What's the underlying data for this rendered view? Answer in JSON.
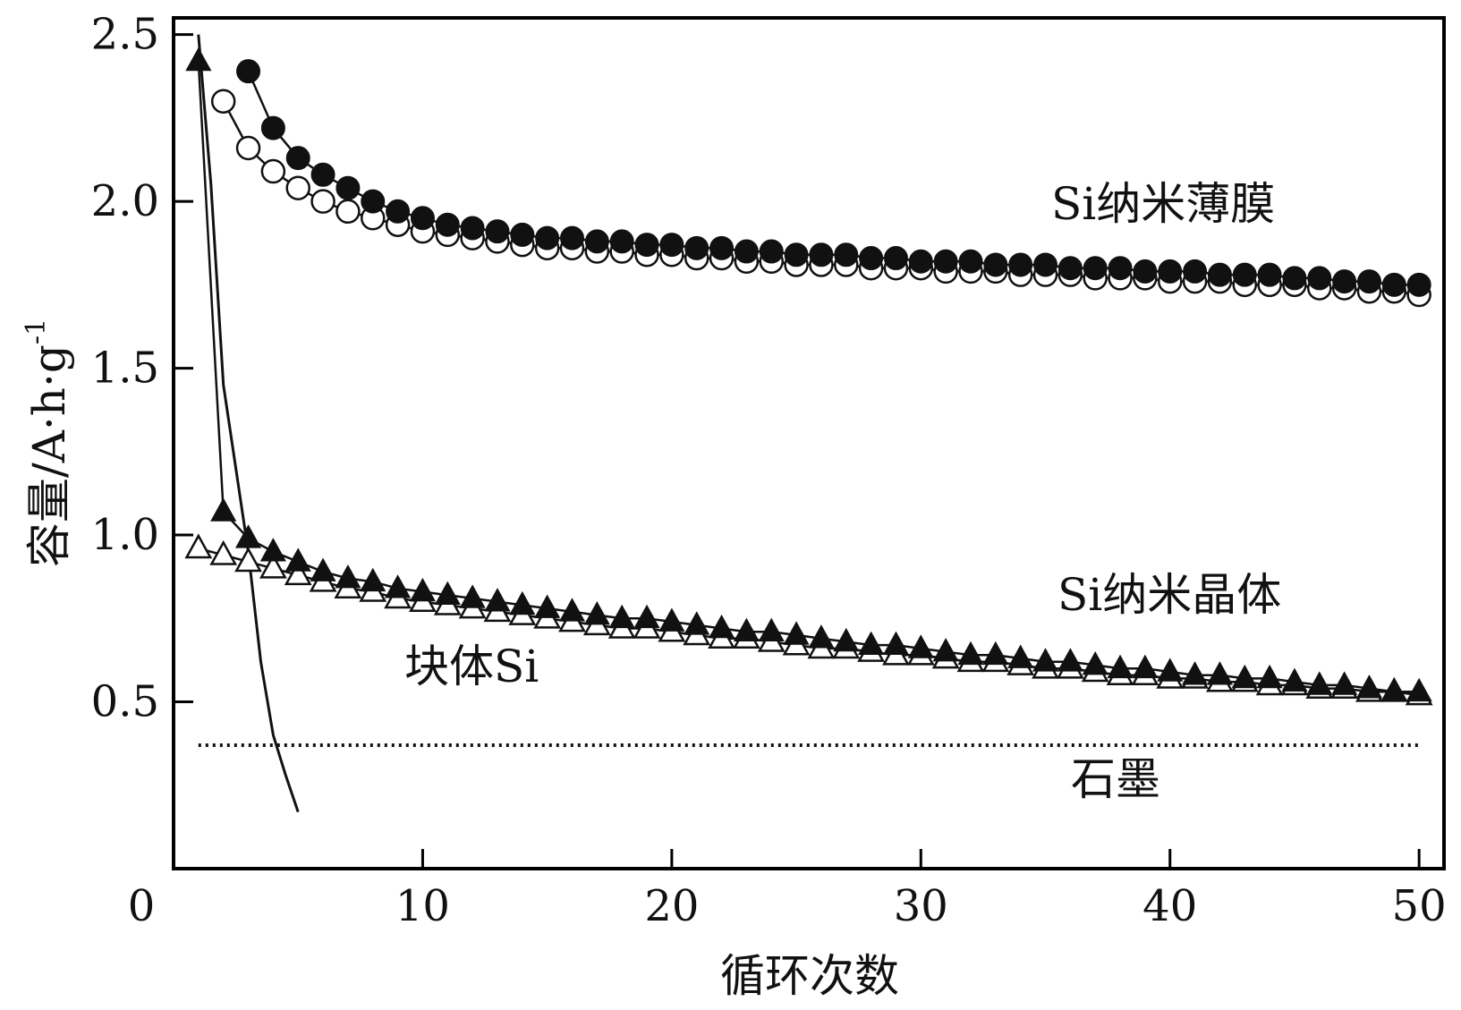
{
  "chart_data": {
    "type": "scatter",
    "xlabel": "循环次数",
    "ylabel": "容量/A·h·g",
    "ylabel_superscript": "-1",
    "xlim": [
      0,
      51
    ],
    "ylim": [
      0,
      2.55
    ],
    "x_ticks": [
      "0",
      "10",
      "20",
      "30",
      "40",
      "50"
    ],
    "y_ticks": [
      "0.5",
      "1.0",
      "1.5",
      "2.0",
      "2.5"
    ],
    "grid": false,
    "annotations": {
      "film": "Si纳米薄膜",
      "nanocrystal": "Si纳米晶体",
      "bulk": "块体Si",
      "graphite": "石墨"
    },
    "series": [
      {
        "marker": "filled-circle",
        "x": [
          3,
          4,
          5,
          6,
          7,
          8,
          9,
          10,
          11,
          12,
          13,
          14,
          15,
          16,
          17,
          18,
          19,
          20,
          21,
          22,
          23,
          24,
          25,
          26,
          27,
          28,
          29,
          30,
          31,
          32,
          33,
          34,
          35,
          36,
          37,
          38,
          39,
          40,
          41,
          42,
          43,
          44,
          45,
          46,
          47,
          48,
          49,
          50
        ],
        "y": [
          2.39,
          2.22,
          2.13,
          2.08,
          2.04,
          2.0,
          1.97,
          1.95,
          1.93,
          1.92,
          1.91,
          1.9,
          1.89,
          1.89,
          1.88,
          1.88,
          1.87,
          1.87,
          1.86,
          1.86,
          1.85,
          1.85,
          1.84,
          1.84,
          1.84,
          1.83,
          1.83,
          1.82,
          1.82,
          1.82,
          1.81,
          1.81,
          1.81,
          1.8,
          1.8,
          1.8,
          1.79,
          1.79,
          1.79,
          1.78,
          1.78,
          1.78,
          1.77,
          1.77,
          1.76,
          1.76,
          1.75,
          1.75
        ]
      },
      {
        "marker": "open-circle",
        "x": [
          2,
          3,
          4,
          5,
          6,
          7,
          8,
          9,
          10,
          11,
          12,
          13,
          14,
          15,
          16,
          17,
          18,
          19,
          20,
          21,
          22,
          23,
          24,
          25,
          26,
          27,
          28,
          29,
          30,
          31,
          32,
          33,
          34,
          35,
          36,
          37,
          38,
          39,
          40,
          41,
          42,
          43,
          44,
          45,
          46,
          47,
          48,
          49,
          50
        ],
        "y": [
          2.3,
          2.16,
          2.09,
          2.04,
          2.0,
          1.97,
          1.95,
          1.93,
          1.91,
          1.9,
          1.89,
          1.88,
          1.87,
          1.86,
          1.86,
          1.85,
          1.85,
          1.84,
          1.84,
          1.83,
          1.83,
          1.82,
          1.82,
          1.81,
          1.81,
          1.81,
          1.8,
          1.8,
          1.8,
          1.79,
          1.79,
          1.79,
          1.78,
          1.78,
          1.78,
          1.77,
          1.77,
          1.77,
          1.76,
          1.76,
          1.76,
          1.75,
          1.75,
          1.75,
          1.74,
          1.74,
          1.73,
          1.73,
          1.72
        ]
      },
      {
        "marker": "filled-triangle",
        "x": [
          1,
          2,
          3,
          4,
          5,
          6,
          7,
          8,
          9,
          10,
          11,
          12,
          13,
          14,
          15,
          16,
          17,
          18,
          19,
          20,
          21,
          22,
          23,
          24,
          25,
          26,
          27,
          28,
          29,
          30,
          31,
          32,
          33,
          34,
          35,
          36,
          37,
          38,
          39,
          40,
          41,
          42,
          43,
          44,
          45,
          46,
          47,
          48,
          49,
          50
        ],
        "y": [
          2.42,
          1.07,
          0.99,
          0.95,
          0.92,
          0.89,
          0.87,
          0.86,
          0.84,
          0.83,
          0.82,
          0.81,
          0.8,
          0.79,
          0.78,
          0.77,
          0.76,
          0.75,
          0.75,
          0.74,
          0.73,
          0.72,
          0.71,
          0.71,
          0.7,
          0.69,
          0.68,
          0.67,
          0.67,
          0.66,
          0.65,
          0.64,
          0.64,
          0.63,
          0.62,
          0.62,
          0.61,
          0.6,
          0.6,
          0.59,
          0.58,
          0.58,
          0.57,
          0.57,
          0.56,
          0.55,
          0.55,
          0.54,
          0.53,
          0.53
        ]
      },
      {
        "marker": "open-triangle",
        "x": [
          1,
          2,
          3,
          4,
          5,
          6,
          7,
          8,
          9,
          10,
          11,
          12,
          13,
          14,
          15,
          16,
          17,
          18,
          19,
          20,
          21,
          22,
          23,
          24,
          25,
          26,
          27,
          28,
          29,
          30,
          31,
          32,
          33,
          34,
          35,
          36,
          37,
          38,
          39,
          40,
          41,
          42,
          43,
          44,
          45,
          46,
          47,
          48,
          49,
          50
        ],
        "y": [
          0.96,
          0.94,
          0.92,
          0.9,
          0.88,
          0.86,
          0.84,
          0.83,
          0.81,
          0.8,
          0.79,
          0.78,
          0.77,
          0.76,
          0.75,
          0.74,
          0.73,
          0.72,
          0.72,
          0.71,
          0.7,
          0.69,
          0.69,
          0.68,
          0.67,
          0.66,
          0.66,
          0.65,
          0.64,
          0.64,
          0.63,
          0.62,
          0.62,
          0.61,
          0.6,
          0.6,
          0.59,
          0.58,
          0.58,
          0.57,
          0.57,
          0.56,
          0.56,
          0.55,
          0.55,
          0.54,
          0.54,
          0.53,
          0.53,
          0.52
        ]
      },
      {
        "marker": "line",
        "x": [
          1,
          1.5,
          2,
          2.5,
          3,
          3.5,
          4,
          4.5,
          5
        ],
        "y": [
          2.5,
          2.05,
          1.45,
          1.2,
          0.95,
          0.62,
          0.4,
          0.28,
          0.17
        ]
      },
      {
        "marker": "dotted-line",
        "x": [
          1,
          50
        ],
        "y": [
          0.37,
          0.37
        ]
      }
    ]
  }
}
